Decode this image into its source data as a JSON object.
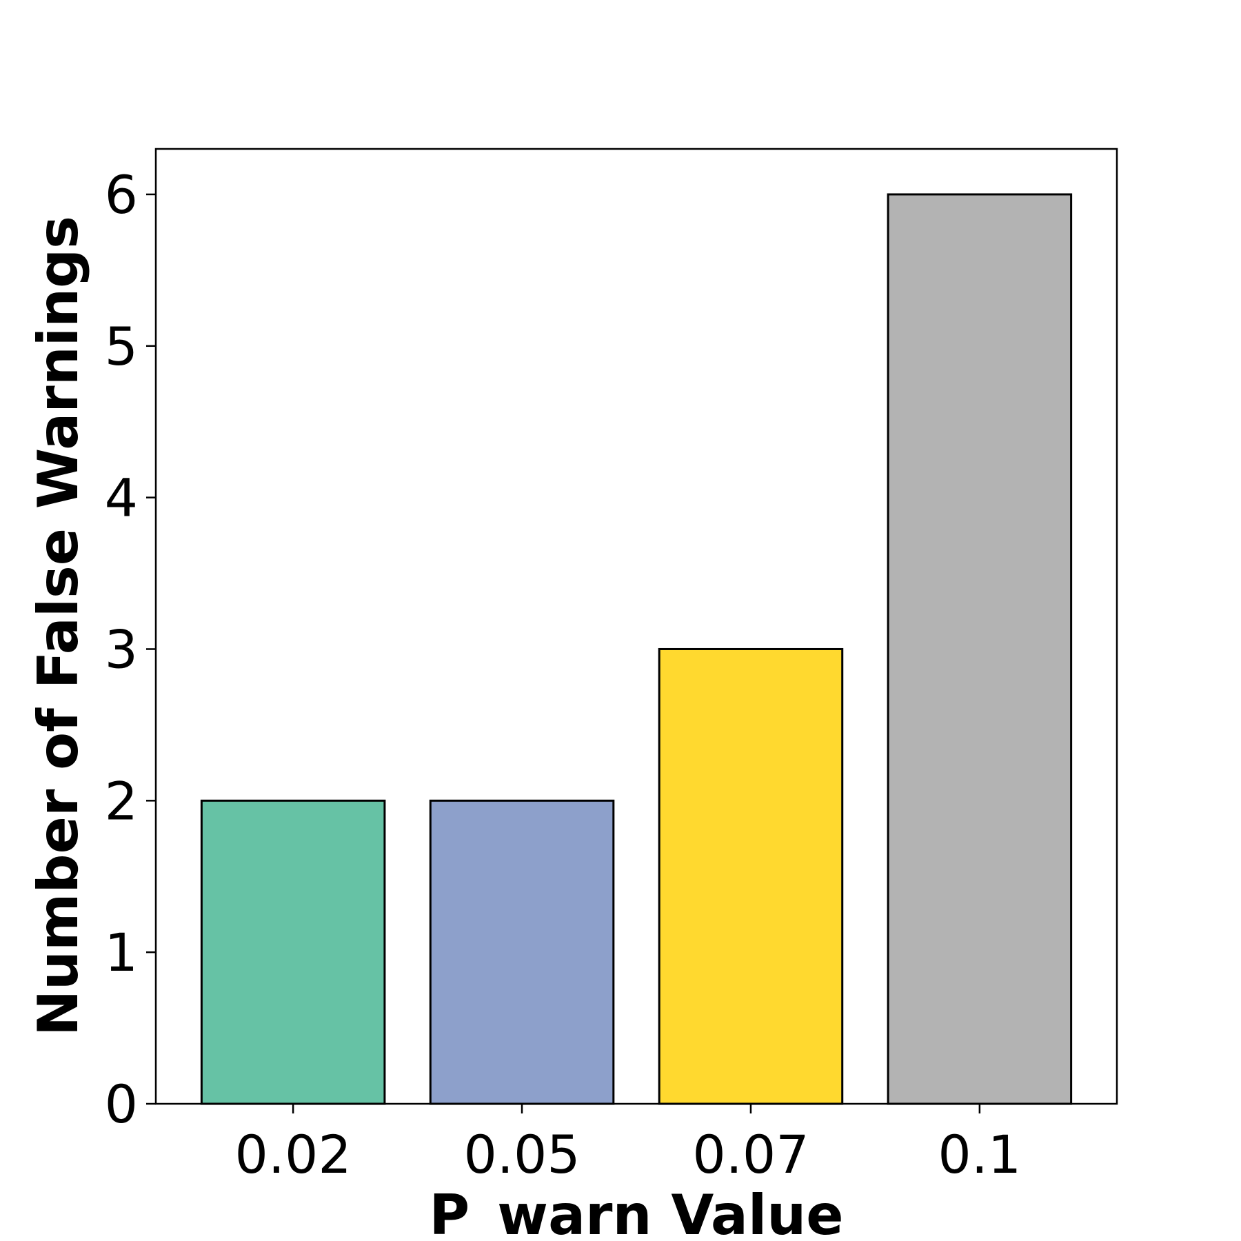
{
  "chart_data": {
    "type": "bar",
    "categories": [
      "0.02",
      "0.05",
      "0.07",
      "0.1"
    ],
    "values": [
      2,
      2,
      3,
      6
    ],
    "colors": [
      "#66c2a5",
      "#8da0cb",
      "#ffd92f",
      "#b3b3b3"
    ],
    "edge_color": "#000000",
    "title": "",
    "xlabel": "P_warn Value",
    "ylabel": "Number of False Warnings",
    "ylim": [
      0,
      6.3
    ],
    "yticks": [
      0,
      1,
      2,
      3,
      4,
      5,
      6
    ],
    "grid": false,
    "legend": "none"
  }
}
